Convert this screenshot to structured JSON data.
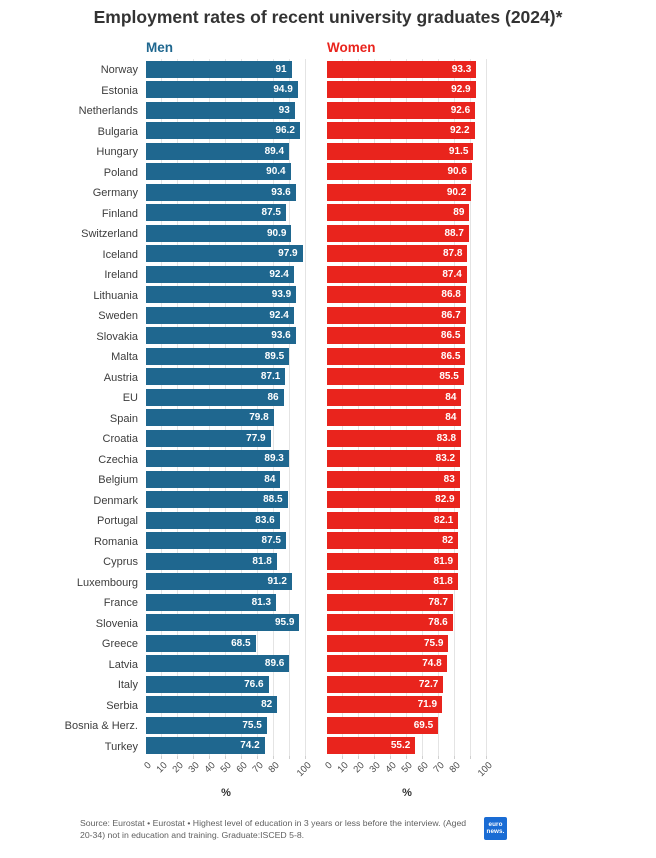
{
  "title": "Employment rates of recent university graduates (2024)*",
  "colors": {
    "men": "#1f678f",
    "women": "#e9241d",
    "grid": "#e4e4e4",
    "logo": "#1a6cd4"
  },
  "chart_data": {
    "type": "bar",
    "orientation": "horizontal",
    "title": "Employment rates of recent university graduates (2024)*",
    "categories": [
      "Norway",
      "Estonia",
      "Netherlands",
      "Bulgaria",
      "Hungary",
      "Poland",
      "Germany",
      "Finland",
      "Switzerland",
      "Iceland",
      "Ireland",
      "Lithuania",
      "Sweden",
      "Slovakia",
      "Malta",
      "Austria",
      "EU",
      "Spain",
      "Croatia",
      "Czechia",
      "Belgium",
      "Denmark",
      "Portugal",
      "Romania",
      "Cyprus",
      "Luxembourg",
      "France",
      "Slovenia",
      "Greece",
      "Latvia",
      "Italy",
      "Serbia",
      "Bosnia & Herz.",
      "Turkey"
    ],
    "series": [
      {
        "name": "Men",
        "values": [
          91,
          94.9,
          93,
          96.2,
          89.4,
          90.4,
          93.6,
          87.5,
          90.9,
          97.9,
          92.4,
          93.9,
          92.4,
          93.6,
          89.5,
          87.1,
          86,
          79.8,
          77.9,
          89.3,
          84,
          88.5,
          83.6,
          87.5,
          81.8,
          91.2,
          81.3,
          95.9,
          68.5,
          89.6,
          76.6,
          82,
          75.5,
          74.2
        ]
      },
      {
        "name": "Women",
        "values": [
          93.3,
          92.9,
          92.6,
          92.2,
          91.5,
          90.6,
          90.2,
          89,
          88.7,
          87.8,
          87.4,
          86.8,
          86.7,
          86.5,
          86.5,
          85.5,
          84,
          84,
          83.8,
          83.2,
          83,
          82.9,
          82.1,
          82,
          81.9,
          81.8,
          78.7,
          78.6,
          75.9,
          74.8,
          72.7,
          71.9,
          69.5,
          55.2
        ]
      }
    ],
    "xlim": [
      0,
      100
    ],
    "x_ticks": [
      0,
      10,
      20,
      30,
      40,
      50,
      60,
      70,
      80,
      100
    ],
    "xlabel": "%",
    "grid": true,
    "legend_position": "top",
    "value_labels": "inside-end"
  },
  "footer": {
    "source_text": "Source: Eurostat • Eurostat • Highest level of education in 3 years or less before the interview. (Aged 20-34) not in education and training. Graduate:ISCED 5-8.",
    "logo": {
      "line1": "euro",
      "line2": "news."
    }
  }
}
